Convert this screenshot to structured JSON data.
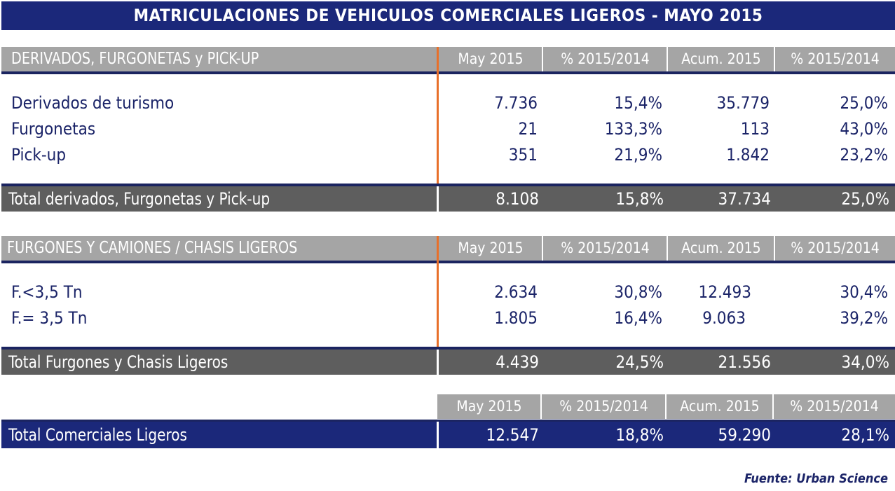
{
  "title": "MATRICULACIONES DE VEHICULOS COMERCIALES LIGEROS - MAYO 2015",
  "columns": [
    "May 2015",
    "% 2015/2014",
    "Acum. 2015",
    "% 2015/2014"
  ],
  "section1": {
    "header": "DERIVADOS, FURGONETAS y PICK-UP",
    "rows": [
      {
        "label": "Derivados de turismo",
        "may": "7.736",
        "pct_may": "15,4%",
        "acum": "35.779",
        "pct_acum": "25,0%"
      },
      {
        "label": "Furgonetas",
        "may": "21",
        "pct_may": "133,3%",
        "acum": "113",
        "pct_acum": "43,0%"
      },
      {
        "label": "Pick-up",
        "may": "351",
        "pct_may": "21,9%",
        "acum": "1.842",
        "pct_acum": "23,2%"
      }
    ],
    "total": {
      "label": "Total derivados, Furgonetas y Pick-up",
      "may": "8.108",
      "pct_may": "15,8%",
      "acum": "37.734",
      "pct_acum": "25,0%"
    }
  },
  "section2": {
    "header": "FURGONES Y CAMIONES / CHASIS LIGEROS",
    "rows": [
      {
        "label": "F.<3,5 Tn",
        "may": "2.634",
        "pct_may": "30,8%",
        "acum": "12.493",
        "pct_acum": "30,4%"
      },
      {
        "label": "F.= 3,5 Tn",
        "may": "1.805",
        "pct_may": "16,4%",
        "acum": "9.063",
        "pct_acum": "39,2%"
      }
    ],
    "total": {
      "label": "Total Furgones y Chasis Ligeros",
      "may": "4.439",
      "pct_may": "24,5%",
      "acum": "21.556",
      "pct_acum": "34,0%"
    }
  },
  "grand_total": {
    "label": "Total Comerciales Ligeros",
    "may": "12.547",
    "pct_may": "18,8%",
    "acum": "59.290",
    "pct_acum": "28,1%"
  },
  "footer": "Fuente: Urban Science",
  "colors": {
    "navy": "#1b287a",
    "gray_header": "#a5a5a5",
    "gray_total": "#5e5e5e",
    "orange": "#e8702a",
    "text": "#1b2468"
  }
}
